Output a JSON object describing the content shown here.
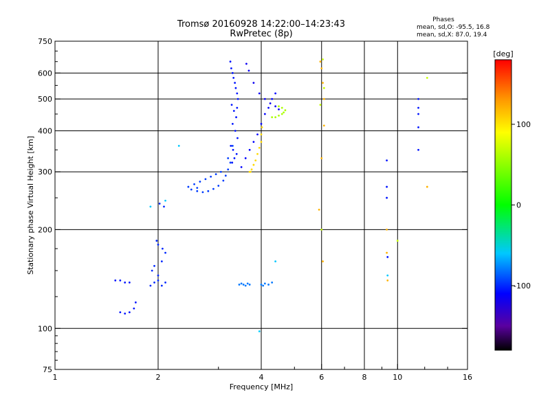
{
  "chart_data": {
    "type": "scatter",
    "title": "Tromsø 20160928 14:22:00–14:23:43",
    "subtitle": "RwPretec (8p)",
    "stats": {
      "heading": "Phases",
      "line1": "mean, sd,O: -95.5, 16.8",
      "line2": "mean, sd,X:  87.0, 19.4"
    },
    "xlabel": "Frequency [MHz]",
    "ylabel": "Stationary phase Virtual Height [km]",
    "x_scale": "log2",
    "y_scale": "log",
    "xlim": [
      1,
      16
    ],
    "ylim": [
      75,
      750
    ],
    "x_ticks": [
      {
        "value": 1,
        "label": "1"
      },
      {
        "value": 2,
        "label": "2"
      },
      {
        "value": 4,
        "label": "4"
      },
      {
        "value": 6,
        "label": "6"
      },
      {
        "value": 8,
        "label": "8"
      },
      {
        "value": 10,
        "label": "10"
      },
      {
        "value": 16,
        "label": "16"
      }
    ],
    "x_gridlines": [
      2,
      4,
      6,
      8,
      10
    ],
    "y_ticks": [
      {
        "value": 75,
        "label": "75"
      },
      {
        "value": 100,
        "label": "100"
      },
      {
        "value": 200,
        "label": "200"
      },
      {
        "value": 300,
        "label": "300"
      },
      {
        "value": 400,
        "label": "400"
      },
      {
        "value": 500,
        "label": "500"
      },
      {
        "value": 600,
        "label": "600"
      },
      {
        "value": 750,
        "label": "750"
      }
    ],
    "y_gridlines": [
      100,
      200,
      300,
      400,
      500,
      600
    ],
    "colorbar": {
      "label": "[deg]",
      "range": [
        -180,
        180
      ],
      "ticks": [
        {
          "value": 100,
          "label": "100"
        },
        {
          "value": 0,
          "label": "0"
        },
        {
          "value": -100,
          "label": "-100"
        }
      ],
      "stops": [
        {
          "value": -180,
          "color": "#000000"
        },
        {
          "value": -150,
          "color": "#5a00a0"
        },
        {
          "value": -110,
          "color": "#0000ff"
        },
        {
          "value": -60,
          "color": "#00c8ff"
        },
        {
          "value": 0,
          "color": "#00ff00"
        },
        {
          "value": 90,
          "color": "#ffff00"
        },
        {
          "value": 130,
          "color": "#ff9a00"
        },
        {
          "value": 180,
          "color": "#ff0000"
        }
      ]
    },
    "series": [
      {
        "phase": -105,
        "x": [
          3.25,
          3.27,
          3.3,
          3.32,
          3.35,
          3.37,
          3.4,
          3.42,
          3.28,
          3.33,
          3.38,
          3.3,
          3.36,
          3.41,
          3.26,
          3.31,
          3.39,
          3.34,
          3.29,
          3.4
        ],
        "y": [
          650,
          620,
          600,
          580,
          560,
          540,
          520,
          500,
          480,
          460,
          440,
          420,
          400,
          380,
          360,
          350,
          340,
          330,
          320,
          470
        ]
      },
      {
        "phase": -95,
        "x": [
          2.5,
          2.6,
          2.7,
          2.8,
          2.9,
          3.0,
          3.1,
          3.15,
          3.2,
          3.25,
          2.55,
          2.65,
          2.75,
          2.85,
          2.95,
          3.05,
          3.2,
          3.3,
          2.45,
          2.6
        ],
        "y": [
          265,
          262,
          260,
          262,
          266,
          272,
          282,
          292,
          305,
          320,
          275,
          280,
          285,
          290,
          295,
          300,
          330,
          360,
          270,
          268
        ]
      },
      {
        "phase": -110,
        "x": [
          3.5,
          3.6,
          3.7,
          3.8,
          3.9,
          4.0,
          4.1,
          4.2,
          4.3,
          4.4
        ],
        "y": [
          310,
          330,
          350,
          370,
          390,
          420,
          450,
          470,
          500,
          520
        ]
      },
      {
        "phase": 105,
        "x": [
          3.7,
          3.75,
          3.8,
          3.85,
          3.9,
          3.95,
          4.0,
          4.0,
          4.02,
          3.72
        ],
        "y": [
          300,
          305,
          315,
          325,
          340,
          355,
          370,
          390,
          410,
          300
        ]
      },
      {
        "phase": 60,
        "x": [
          4.3,
          4.4,
          4.5,
          4.6,
          4.65,
          4.7,
          4.6,
          4.5
        ],
        "y": [
          440,
          440,
          445,
          450,
          455,
          462,
          470,
          475
        ]
      },
      {
        "phase": -115,
        "x": [
          3.62,
          3.68,
          3.8,
          3.95,
          4.1,
          4.25,
          4.4,
          4.5
        ],
        "y": [
          640,
          610,
          560,
          520,
          500,
          485,
          475,
          465
        ]
      },
      {
        "phase": -100,
        "x": [
          1.9,
          1.95,
          2.0,
          2.05,
          2.1,
          2.0,
          1.95,
          2.05,
          2.1,
          2.0,
          1.92,
          2.02,
          2.08,
          1.98,
          2.06
        ],
        "y": [
          135,
          138,
          140,
          135,
          138,
          145,
          155,
          160,
          170,
          180,
          150,
          240,
          235,
          185,
          175
        ]
      },
      {
        "phase": -105,
        "x": [
          1.55,
          1.6,
          1.65,
          1.7,
          1.72,
          1.5,
          1.55,
          1.6,
          1.65
        ],
        "y": [
          112,
          111,
          112,
          115,
          120,
          140,
          140,
          138,
          138
        ]
      },
      {
        "phase": -80,
        "x": [
          3.45,
          3.5,
          3.55,
          3.6,
          3.65,
          3.7,
          4.0,
          4.05,
          4.1,
          4.2,
          4.3
        ],
        "y": [
          136,
          137,
          136,
          135,
          137,
          136,
          136,
          135,
          137,
          136,
          138
        ]
      },
      {
        "phase": -105,
        "x": [
          9.3,
          9.3,
          9.3,
          9.35,
          11.5,
          11.5,
          11.5,
          11.5,
          11.5
        ],
        "y": [
          250,
          270,
          325,
          165,
          500,
          470,
          450,
          410,
          350
        ]
      },
      {
        "phase": 120,
        "x": [
          5.95,
          6.0,
          6.05,
          6.1,
          6.1,
          6.0,
          5.9,
          6.05,
          9.3,
          9.3,
          9.35,
          12.2
        ],
        "y": [
          650,
          620,
          560,
          500,
          415,
          330,
          230,
          160,
          200,
          170,
          140,
          270
        ]
      },
      {
        "phase": 70,
        "x": [
          6.05,
          6.1,
          5.95,
          6.0,
          12.2,
          10.0
        ],
        "y": [
          660,
          540,
          480,
          200,
          580,
          185
        ]
      },
      {
        "phase": -60,
        "x": [
          1.9,
          2.1,
          2.3,
          3.95,
          9.35,
          4.4
        ],
        "y": [
          235,
          245,
          360,
          98,
          145,
          160
        ]
      }
    ]
  }
}
